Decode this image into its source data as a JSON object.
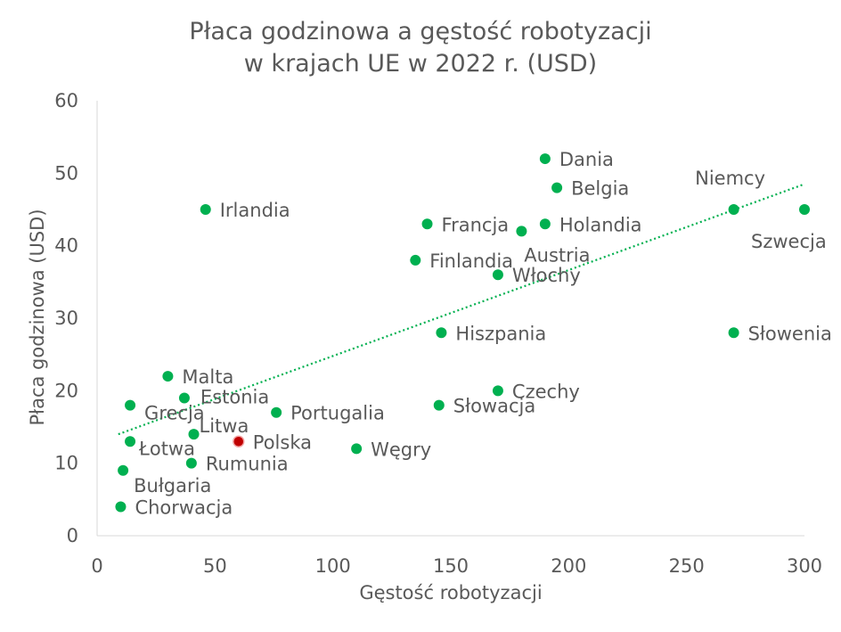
{
  "chart_data": {
    "type": "scatter",
    "title_lines": [
      "Płaca godzinowa a gęstość robotyzacji",
      "w krajach UE w 2022 r. (USD)"
    ],
    "xlabel": "Gęstość robotyzacji",
    "ylabel": "Płaca godzinowa (USD)",
    "xlim": [
      0,
      300
    ],
    "ylim": [
      0,
      60
    ],
    "xticks": [
      0,
      50,
      100,
      150,
      200,
      250,
      300
    ],
    "yticks": [
      0,
      10,
      20,
      30,
      40,
      50,
      60
    ],
    "grid": false,
    "legend": "none",
    "point_color": "#00B050",
    "highlight_color": "#C00000",
    "trendline": {
      "type": "linear",
      "color": "#00B050",
      "style": "dotted",
      "x0": 9,
      "y0": 14,
      "x1": 300,
      "y1": 48.5
    },
    "points": [
      {
        "label": "Irlandia",
        "x": 46,
        "y": 45,
        "label_pos": "right"
      },
      {
        "label": "Dania",
        "x": 190,
        "y": 52,
        "label_pos": "right"
      },
      {
        "label": "Belgia",
        "x": 195,
        "y": 48,
        "label_pos": "right"
      },
      {
        "label": "Niemcy",
        "x": 270,
        "y": 45,
        "label_pos": "above"
      },
      {
        "label": "Szwecja",
        "x": 300,
        "y": 45,
        "label_pos": "below-left"
      },
      {
        "label": "Francja",
        "x": 140,
        "y": 43,
        "label_pos": "right"
      },
      {
        "label": "Holandia",
        "x": 190,
        "y": 43,
        "label_pos": "right"
      },
      {
        "label": "Austria",
        "x": 180,
        "y": 42,
        "label_pos": "below"
      },
      {
        "label": "Finlandia",
        "x": 135,
        "y": 38,
        "label_pos": "right"
      },
      {
        "label": "Włochy",
        "x": 170,
        "y": 36,
        "label_pos": "right"
      },
      {
        "label": "Hiszpania",
        "x": 146,
        "y": 28,
        "label_pos": "right"
      },
      {
        "label": "Słowenia",
        "x": 270,
        "y": 28,
        "label_pos": "right"
      },
      {
        "label": "Malta",
        "x": 30,
        "y": 22,
        "label_pos": "right"
      },
      {
        "label": "Estonia",
        "x": 37,
        "y": 19,
        "label_pos": "right"
      },
      {
        "label": "Czechy",
        "x": 170,
        "y": 20,
        "label_pos": "right"
      },
      {
        "label": "Grecja",
        "x": 14,
        "y": 18,
        "label_pos": "below-right"
      },
      {
        "label": "Słowacja",
        "x": 145,
        "y": 18,
        "label_pos": "right"
      },
      {
        "label": "Portugalia",
        "x": 76,
        "y": 17,
        "label_pos": "right"
      },
      {
        "label": "Litwa",
        "x": 41,
        "y": 14,
        "label_pos": "above-right"
      },
      {
        "label": "Łotwa",
        "x": 14,
        "y": 13,
        "label_pos": "right"
      },
      {
        "label": "Polska",
        "x": 60,
        "y": 13,
        "label_pos": "right",
        "highlight": true
      },
      {
        "label": "Węgry",
        "x": 110,
        "y": 12,
        "label_pos": "right"
      },
      {
        "label": "Rumunia",
        "x": 40,
        "y": 10,
        "label_pos": "right"
      },
      {
        "label": "Bułgaria",
        "x": 11,
        "y": 9,
        "label_pos": "below-right"
      },
      {
        "label": "Chorwacja",
        "x": 10,
        "y": 4,
        "label_pos": "right"
      }
    ]
  }
}
